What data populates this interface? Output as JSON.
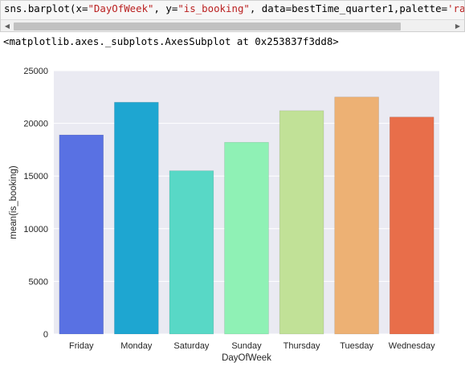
{
  "code_cell": {
    "prefix": "sns.barplot(x=",
    "x_arg": "\"DayOfWeek\"",
    "mid1": ", y=",
    "y_arg": "\"is_booking\"",
    "mid2": ", data=bestTime_quarter1,palette=",
    "palette_arg": "'rainbo"
  },
  "output": {
    "repr": "<matplotlib.axes._subplots.AxesSubplot at 0x253837f3dd8>"
  },
  "chart_data": {
    "type": "bar",
    "categories": [
      "Friday",
      "Monday",
      "Saturday",
      "Sunday",
      "Thursday",
      "Tuesday",
      "Wednesday"
    ],
    "values": [
      18900,
      22000,
      15500,
      18200,
      21200,
      22500,
      20600
    ],
    "colors": [
      "#5971e3",
      "#1ea6d1",
      "#58d8c6",
      "#8ff1b5",
      "#c1e197",
      "#edb174",
      "#e86e4a"
    ],
    "xlabel": "DayOfWeek",
    "ylabel": "mean(is_booking)",
    "yticks": [
      0,
      5000,
      10000,
      15000,
      20000,
      25000
    ],
    "ylim": [
      0,
      25000
    ],
    "grid": true,
    "background": "#eaeaf2"
  }
}
